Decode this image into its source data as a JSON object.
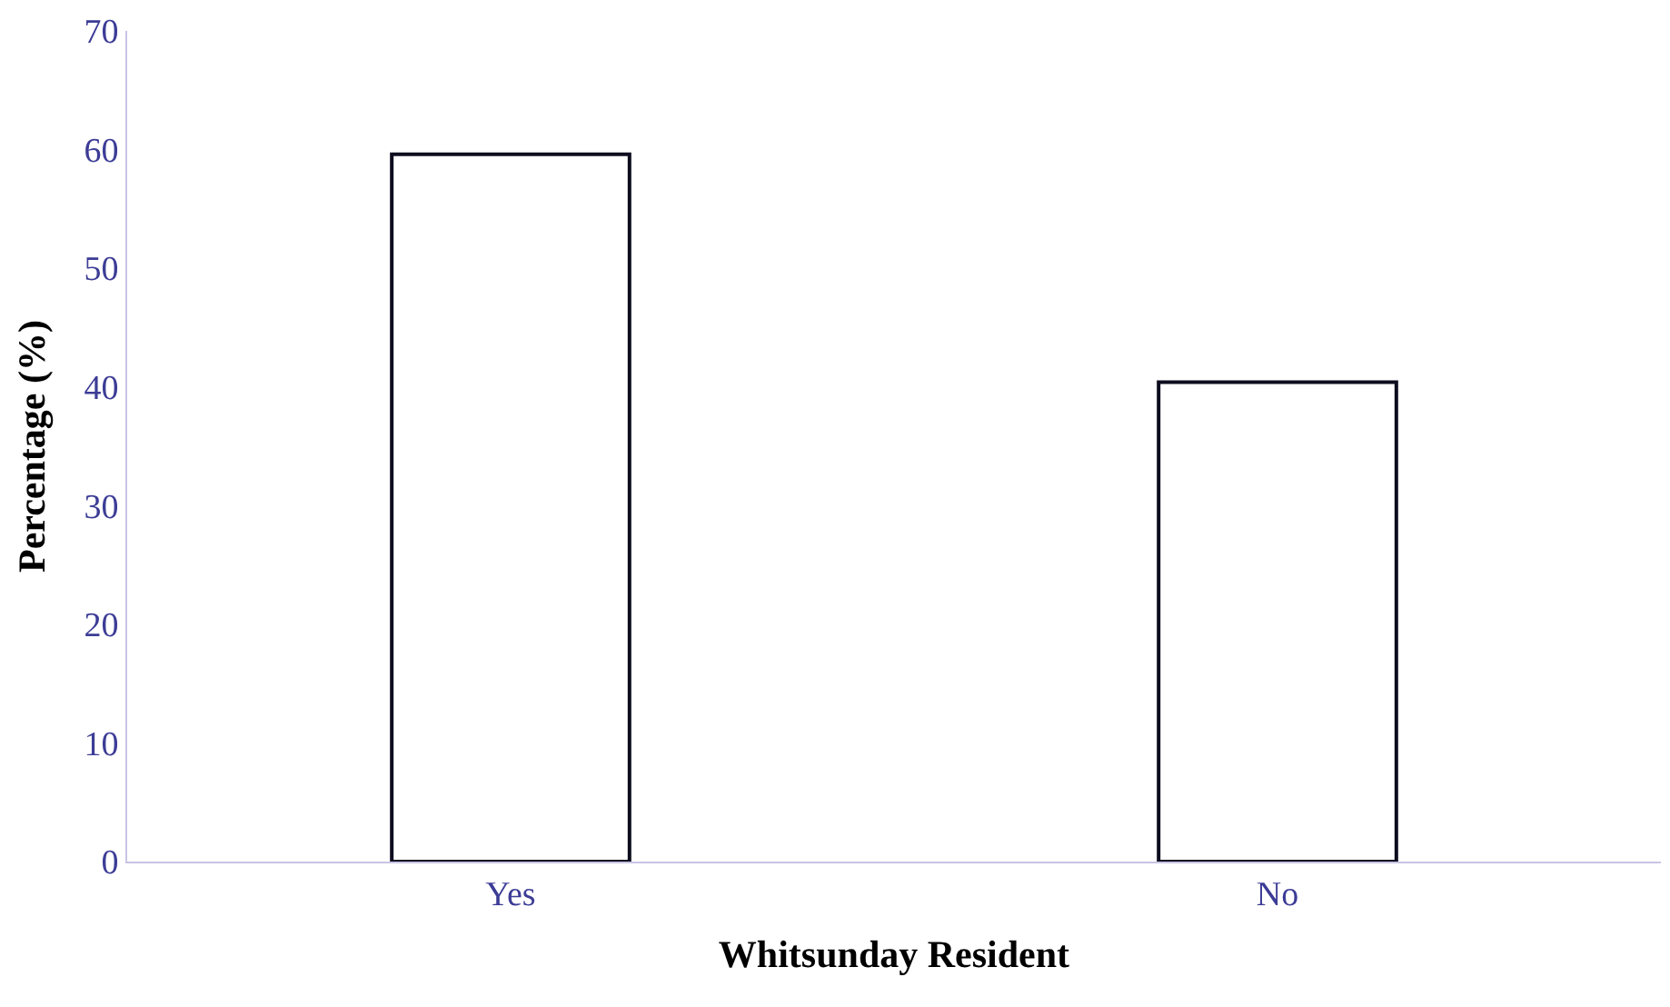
{
  "chart_data": {
    "type": "bar",
    "xlabel": "Whitsunday Resident",
    "ylabel": "Percentage (%)",
    "categories": [
      "Yes",
      "No"
    ],
    "series": [
      {
        "color": "#ffffff",
        "values": [
          59.6,
          40.4
        ]
      }
    ],
    "ylim": [
      0,
      70
    ],
    "yticks": [
      0,
      10,
      20,
      30,
      40,
      50,
      60,
      70
    ]
  }
}
